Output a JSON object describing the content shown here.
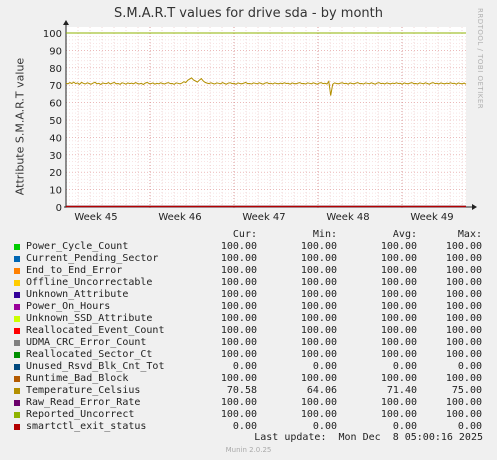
{
  "title": "S.M.A.R.T values for drive sda - by month",
  "side_label": "RRDTOOL / TOBI OETIKER",
  "footer": {
    "last_update": "Last update:  Mon Dec  8 05:00:16 2025",
    "version": "Munin 2.0.25"
  },
  "legend_headers": {
    "cur": "Cur:",
    "min": "Min:",
    "avg": "Avg:",
    "max": "Max:"
  },
  "chart_data": {
    "type": "line",
    "title": "S.M.A.R.T values for drive sda - by month",
    "ylabel": "Attribute S.M.A.R.T value",
    "xlabel": "",
    "ylim": [
      0,
      100
    ],
    "yticks": [
      0,
      10,
      20,
      30,
      40,
      50,
      60,
      70,
      80,
      90,
      100
    ],
    "xticks": [
      "Week 45",
      "Week 46",
      "Week 47",
      "Week 48",
      "Week 49"
    ],
    "grid": true,
    "flat_value_100": 100,
    "temperature_samples": [
      71.2,
      70.8,
      71.5,
      71.0,
      71.8,
      70.9,
      71.3,
      70.5,
      71.6,
      71.1,
      70.7,
      71.4,
      71.0,
      70.6,
      71.2,
      71.7,
      70.8,
      71.1,
      70.4,
      71.3,
      71.0,
      70.9,
      71.5,
      70.7,
      71.2,
      71.6,
      70.8,
      71.0,
      70.5,
      71.4,
      71.1,
      70.6,
      71.3,
      70.9,
      71.2,
      70.8,
      71.5,
      71.0,
      70.7,
      71.1,
      70.4,
      71.2,
      71.6,
      71.0,
      70.9,
      71.3,
      70.6,
      71.1,
      70.8,
      71.4,
      71.0,
      70.7,
      71.2,
      71.5,
      70.9,
      71.0,
      70.5,
      71.3,
      71.1,
      70.8,
      71.2,
      72.0,
      71.5,
      72.8,
      73.5,
      74.2,
      73.0,
      72.4,
      71.8,
      72.9,
      73.8,
      72.5,
      71.6,
      71.2,
      70.9,
      71.4,
      71.0,
      70.7,
      71.3,
      71.1,
      70.8,
      71.5,
      71.0,
      70.6,
      71.2,
      71.4,
      70.9,
      71.1,
      70.5,
      71.3,
      71.0,
      70.8,
      71.2,
      71.6,
      70.9,
      71.0,
      70.7,
      71.3,
      71.1,
      70.8,
      71.4,
      71.0,
      70.6,
      71.2,
      71.5,
      70.9,
      71.1,
      70.7,
      71.3,
      71.0,
      70.8,
      71.2,
      70.9,
      71.4,
      71.0,
      71.1,
      70.6,
      71.3,
      71.0,
      70.8,
      71.2,
      71.5,
      70.9,
      71.0,
      70.7,
      71.3,
      71.1,
      70.8,
      71.4,
      71.0,
      70.6,
      71.2,
      71.5,
      70.9,
      71.1,
      70.7,
      72.2,
      64.06,
      70.5,
      71.3,
      71.0,
      70.8,
      71.2,
      71.4,
      70.9,
      71.1,
      70.6,
      71.3,
      71.0,
      70.8,
      71.2,
      71.5,
      70.9,
      71.0,
      70.7,
      71.3,
      71.1,
      70.8,
      71.4,
      71.0,
      70.6,
      71.2,
      71.5,
      70.9,
      71.1,
      70.7,
      71.3,
      71.0,
      70.8,
      71.2,
      70.9,
      71.4,
      71.0,
      71.1,
      70.6,
      71.3,
      71.0,
      70.8,
      71.2,
      71.5,
      70.9,
      71.0,
      70.7,
      71.3,
      71.1,
      70.8,
      71.4,
      71.0,
      70.6,
      71.2,
      71.5,
      70.9,
      71.1,
      70.7,
      71.3,
      71.0,
      70.8,
      71.2,
      70.9,
      71.4,
      71.0,
      71.1,
      70.6,
      71.3,
      71.0,
      70.8,
      71.2,
      70.58
    ],
    "series": [
      {
        "name": "Power_Cycle_Count",
        "color": "#00cc00",
        "cur": "100.00",
        "min": "100.00",
        "avg": "100.00",
        "max": "100.00"
      },
      {
        "name": "Current_Pending_Sector",
        "color": "#0066b3",
        "cur": "100.00",
        "min": "100.00",
        "avg": "100.00",
        "max": "100.00"
      },
      {
        "name": "End_to_End_Error",
        "color": "#ff8000",
        "cur": "100.00",
        "min": "100.00",
        "avg": "100.00",
        "max": "100.00"
      },
      {
        "name": "Offline_Uncorrectable",
        "color": "#ffcc00",
        "cur": "100.00",
        "min": "100.00",
        "avg": "100.00",
        "max": "100.00"
      },
      {
        "name": "Unknown_Attribute",
        "color": "#330099",
        "cur": "100.00",
        "min": "100.00",
        "avg": "100.00",
        "max": "100.00"
      },
      {
        "name": "Power_On_Hours",
        "color": "#990099",
        "cur": "100.00",
        "min": "100.00",
        "avg": "100.00",
        "max": "100.00"
      },
      {
        "name": "Unknown_SSD_Attribute",
        "color": "#ccff00",
        "cur": "100.00",
        "min": "100.00",
        "avg": "100.00",
        "max": "100.00"
      },
      {
        "name": "Reallocated_Event_Count",
        "color": "#ff0000",
        "cur": "100.00",
        "min": "100.00",
        "avg": "100.00",
        "max": "100.00"
      },
      {
        "name": "UDMA_CRC_Error_Count",
        "color": "#808080",
        "cur": "100.00",
        "min": "100.00",
        "avg": "100.00",
        "max": "100.00"
      },
      {
        "name": "Reallocated_Sector_Ct",
        "color": "#008f00",
        "cur": "100.00",
        "min": "100.00",
        "avg": "100.00",
        "max": "100.00"
      },
      {
        "name": "Unused_Rsvd_Blk_Cnt_Tot",
        "color": "#00487d",
        "cur": "0.00",
        "min": "0.00",
        "avg": "0.00",
        "max": "0.00"
      },
      {
        "name": "Runtime_Bad_Block",
        "color": "#b35a00",
        "cur": "100.00",
        "min": "100.00",
        "avg": "100.00",
        "max": "100.00"
      },
      {
        "name": "Temperature_Celsius",
        "color": "#b38f00",
        "cur": "70.58",
        "min": "64.06",
        "avg": "71.40",
        "max": "75.00"
      },
      {
        "name": "Raw_Read_Error_Rate",
        "color": "#6b006b",
        "cur": "100.00",
        "min": "100.00",
        "avg": "100.00",
        "max": "100.00"
      },
      {
        "name": "Reported_Uncorrect",
        "color": "#8fb300",
        "cur": "100.00",
        "min": "100.00",
        "avg": "100.00",
        "max": "100.00"
      },
      {
        "name": "smartctl_exit_status",
        "color": "#b30000",
        "cur": "0.00",
        "min": "0.00",
        "avg": "0.00",
        "max": "0.00"
      }
    ]
  }
}
